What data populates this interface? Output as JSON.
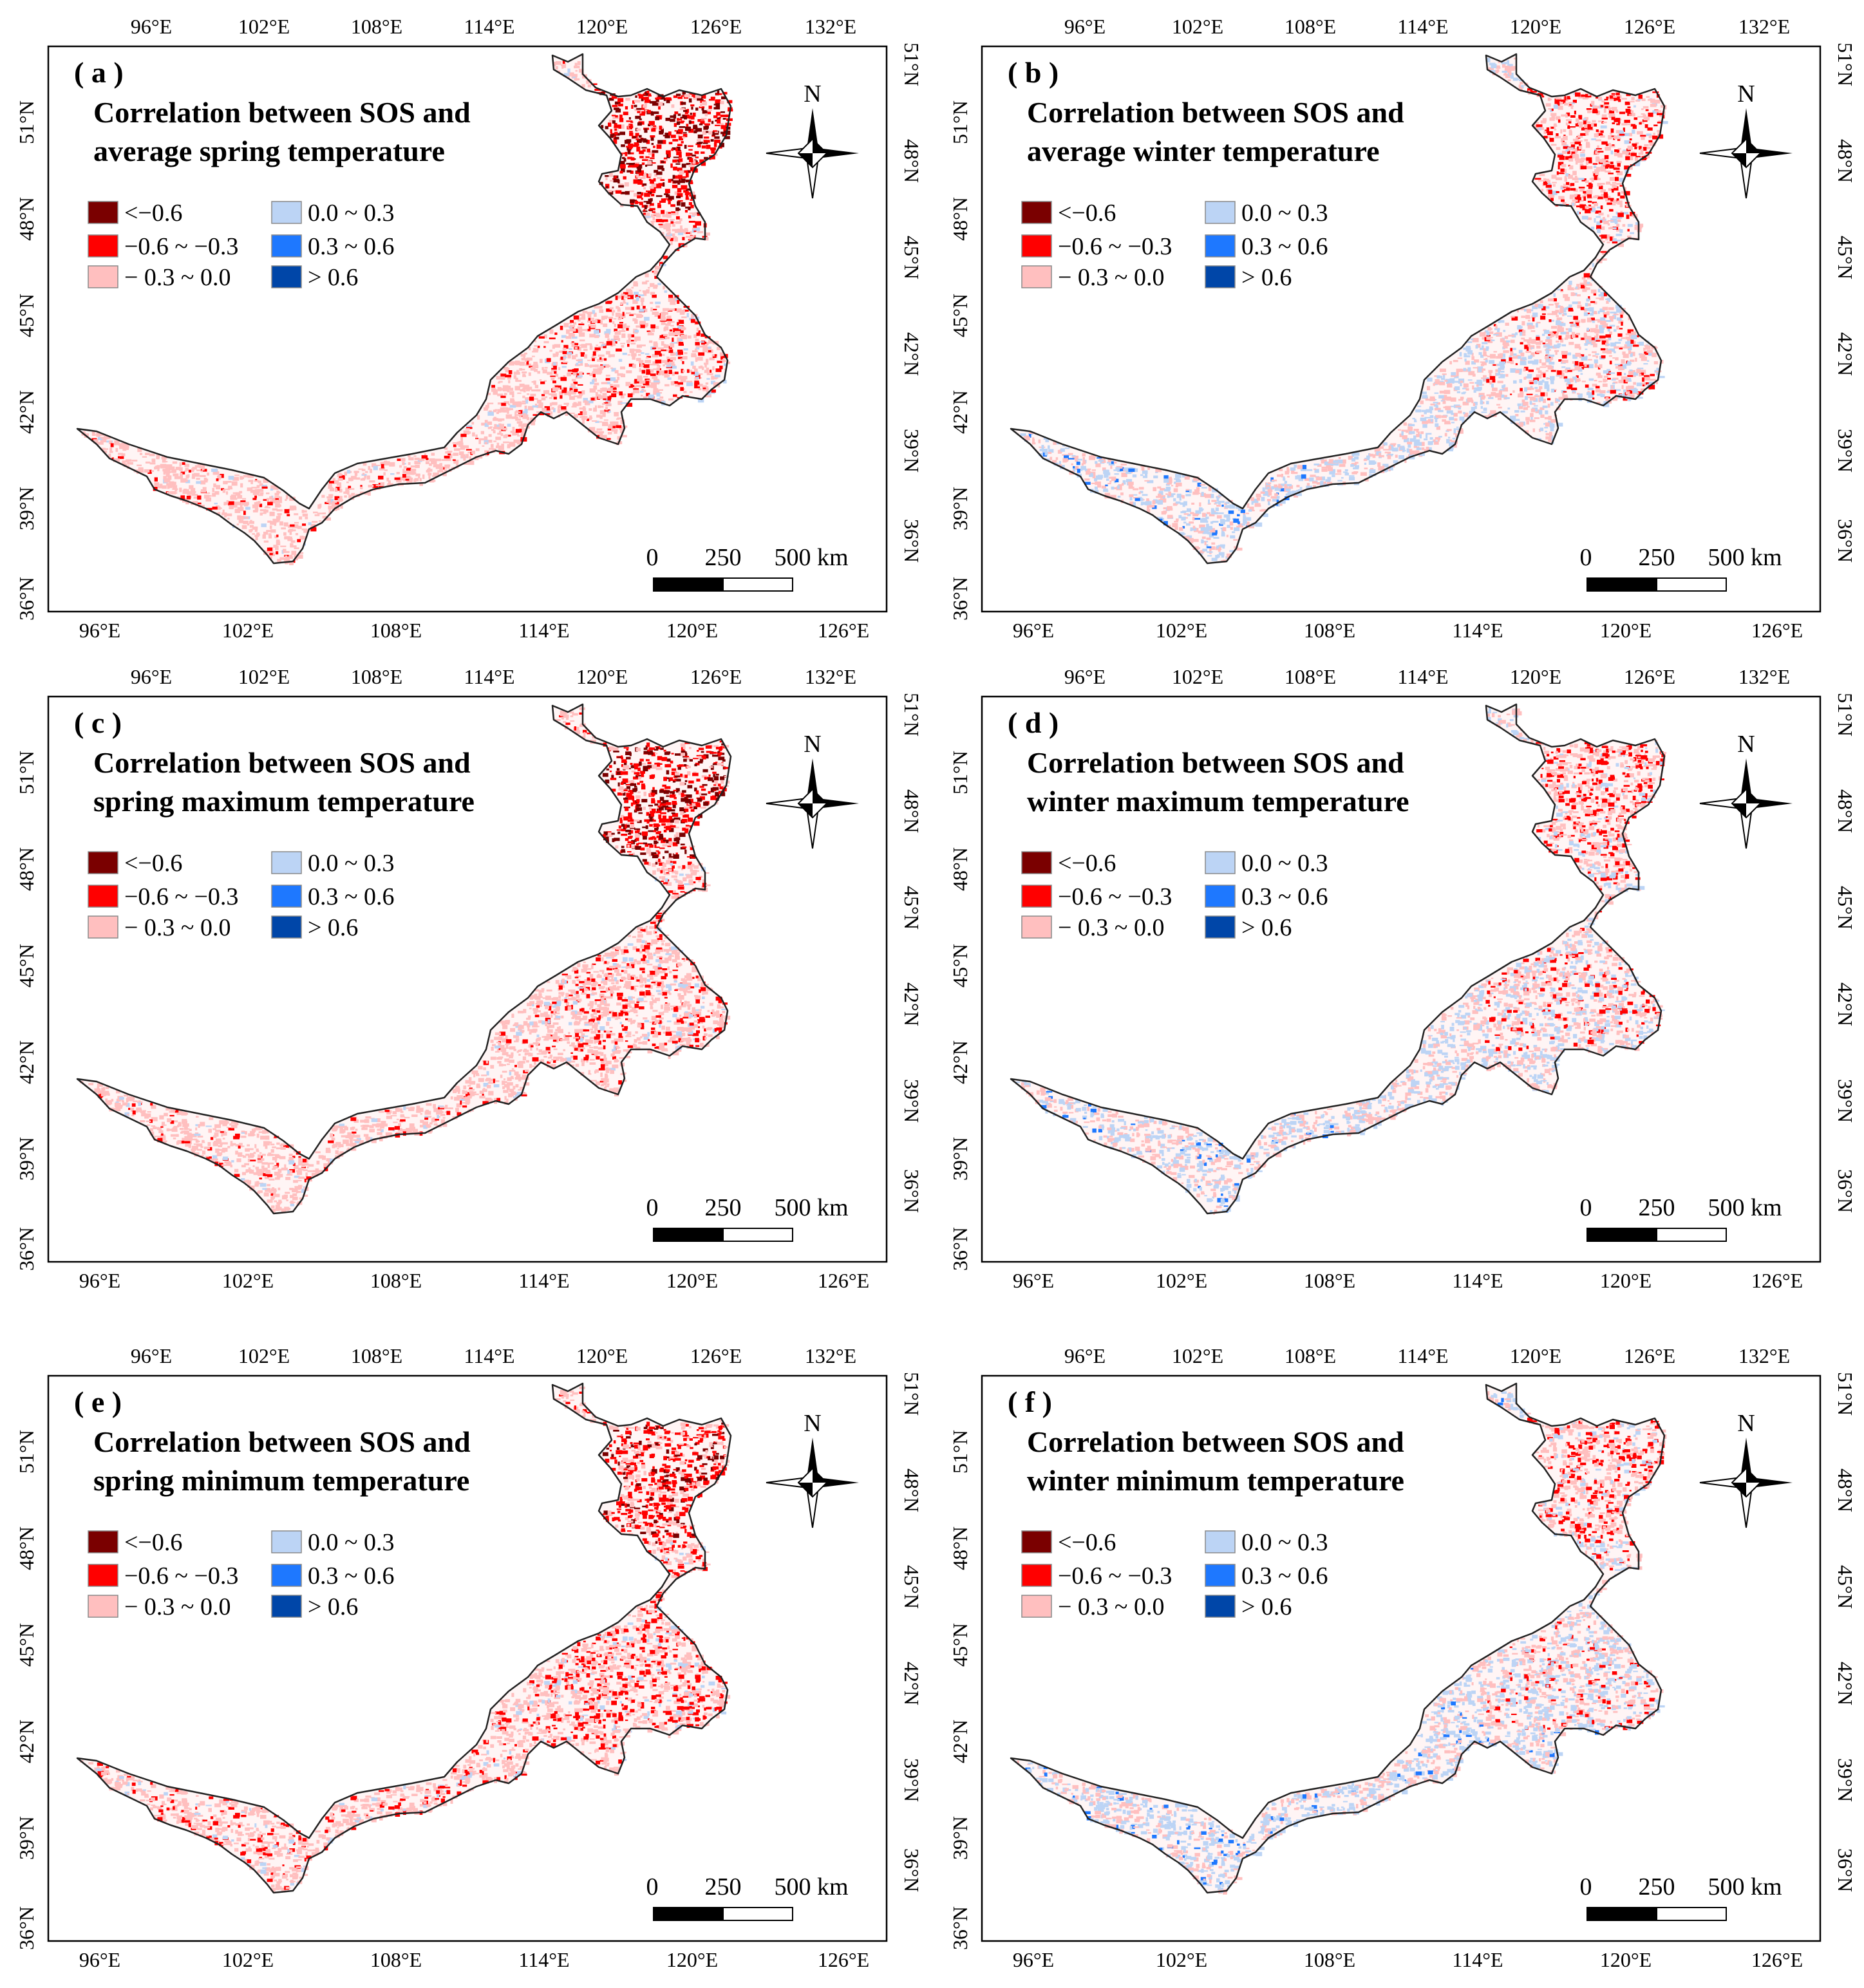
{
  "colors": {
    "lt_n06": "#7a0000",
    "n06_n03": "#ff0000",
    "n03_0": "#ffbfbf",
    "p0_03": "#bcd4f5",
    "p03_06": "#1e78ff",
    "gt_06": "#0046a8",
    "outline": "#222222",
    "frame": "#000000"
  },
  "axes": {
    "top_lon": [
      "96°E",
      "102°E",
      "108°E",
      "114°E",
      "120°E",
      "126°E",
      "132°E"
    ],
    "bottom_lon": [
      "96°E",
      "102°E",
      "108°E",
      "114°E",
      "120°E",
      "126°E"
    ],
    "left_lat": [
      "51°N",
      "48°N",
      "45°N",
      "42°N",
      "39°N",
      "36°N"
    ],
    "right_lat": [
      "51°N",
      "48°N",
      "45°N",
      "42°N",
      "39°N",
      "36°N"
    ]
  },
  "legend": {
    "items": [
      {
        "label": "<−0.6",
        "color_key": "lt_n06"
      },
      {
        "label": "−0.6 ~ −0.3",
        "color_key": "n06_n03"
      },
      {
        "label": "− 0.3 ~ 0.0",
        "color_key": "n03_0"
      },
      {
        "label": "0.0 ~ 0.3",
        "color_key": "p0_03"
      },
      {
        "label": "0.3 ~ 0.6",
        "color_key": "p03_06"
      },
      {
        "label": "> 0.6",
        "color_key": "gt_06"
      }
    ]
  },
  "north_label": "N",
  "scale_bar": {
    "labels": [
      "0",
      "250",
      "500 km"
    ]
  },
  "panels": [
    {
      "id": "a",
      "label": "( a )",
      "title1": "Correlation between SOS and",
      "title2": "average spring temperature",
      "pattern": "spring_avg"
    },
    {
      "id": "b",
      "label": "( b )",
      "title1": "Correlation between SOS and",
      "title2": "average winter temperature",
      "pattern": "winter"
    },
    {
      "id": "c",
      "label": "( c )",
      "title1": "Correlation between SOS and",
      "title2": "spring maximum temperature",
      "pattern": "spring_avg"
    },
    {
      "id": "d",
      "label": "( d )",
      "title1": "Correlation between SOS and",
      "title2": "winter maximum temperature",
      "pattern": "winter"
    },
    {
      "id": "e",
      "label": "( e )",
      "title1": "Correlation between SOS and",
      "title2": "spring minimum temperature",
      "pattern": "spring_min"
    },
    {
      "id": "f",
      "label": "( f )",
      "title1": "Correlation between SOS and",
      "title2": "winter minimum temperature",
      "pattern": "winter_min"
    }
  ]
}
